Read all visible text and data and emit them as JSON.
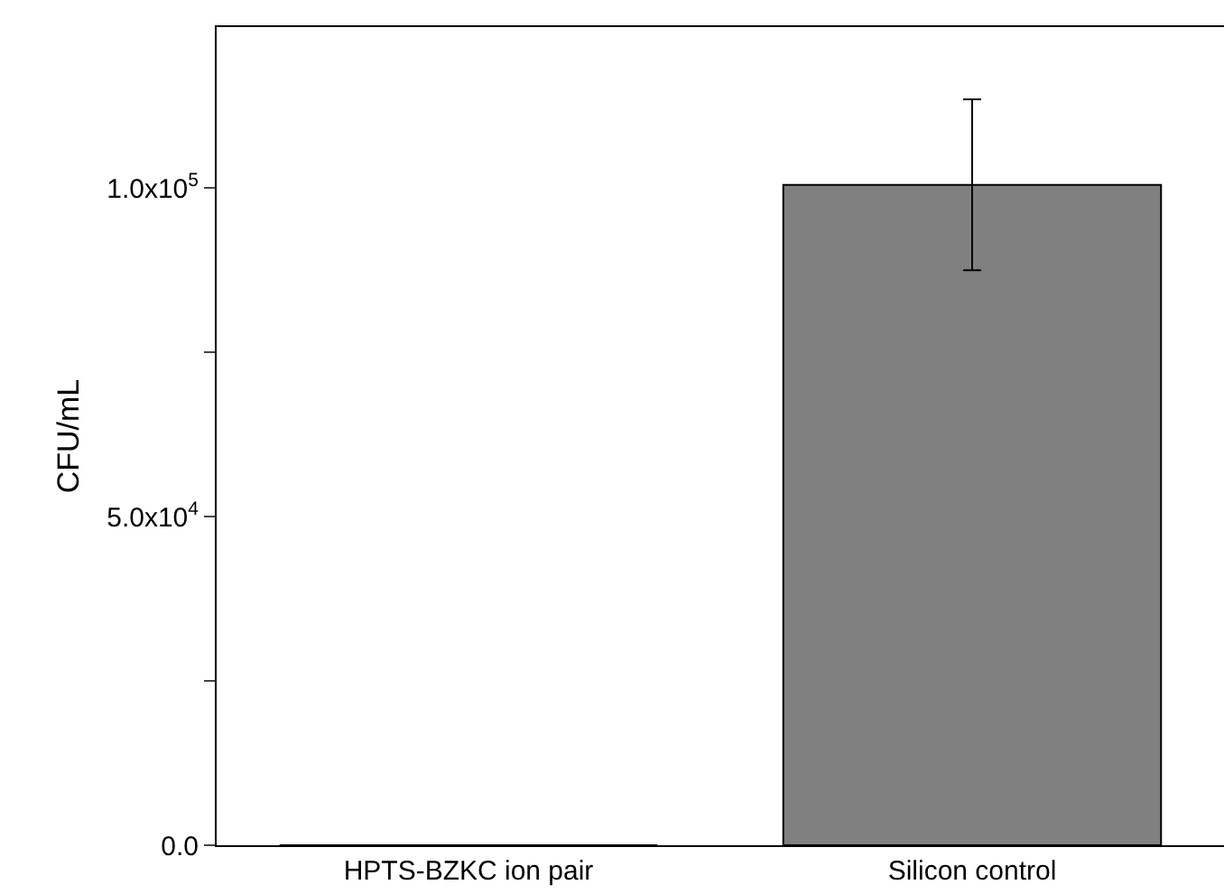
{
  "chart_data": {
    "type": "bar",
    "ylabel": "CFU/mL",
    "categories": [
      "HPTS-BZKC ion pair",
      "Silicon control"
    ],
    "values": [
      0,
      100500
    ],
    "color": "#808080",
    "errors": [
      null,
      13000
    ],
    "ylim": [
      0,
      124500
    ],
    "yticks": [
      {
        "value": 0,
        "label": "0.0"
      },
      {
        "value": 25000,
        "label": null
      },
      {
        "value": 50000,
        "label": "5.0x10$^{4}$"
      },
      {
        "value": 75000,
        "label": null
      },
      {
        "value": 100000,
        "label": "1.0x10$^{5}$"
      }
    ],
    "grid": false
  }
}
